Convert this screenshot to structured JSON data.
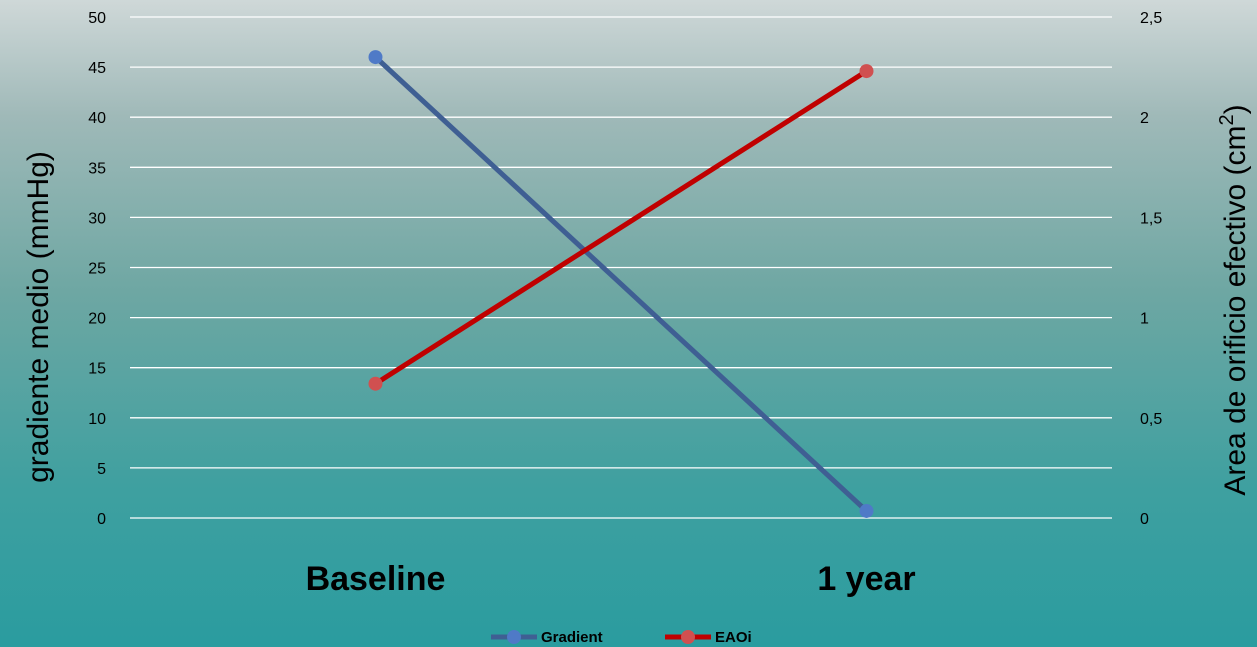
{
  "chart_data": {
    "type": "line",
    "title": "",
    "categories": [
      "Baseline",
      "1 year"
    ],
    "series": [
      {
        "name": "Gradient",
        "axis": "left",
        "color": "#3f5f93",
        "marker_color": "#4f7ac7",
        "values": [
          46,
          0.7
        ]
      },
      {
        "name": "EAOi",
        "axis": "right",
        "color": "#c00000",
        "marker_color": "#d05050",
        "values": [
          0.67,
          2.23
        ]
      }
    ],
    "ylabel": "gradiente medio (mmHg)",
    "y2label_main": "Area de orificio efectivo (cm",
    "y2label_sup": "2",
    "y2label_end": ")",
    "ylim": [
      0,
      50
    ],
    "y2lim": [
      0,
      2.5
    ],
    "yticks": [
      "0",
      "5",
      "10",
      "15",
      "20",
      "25",
      "30",
      "35",
      "40",
      "45",
      "50"
    ],
    "y2ticks": [
      "0",
      "0,5",
      "1",
      "1,5",
      "2",
      "2,5"
    ],
    "grid": true,
    "legend_position": "bottom"
  }
}
